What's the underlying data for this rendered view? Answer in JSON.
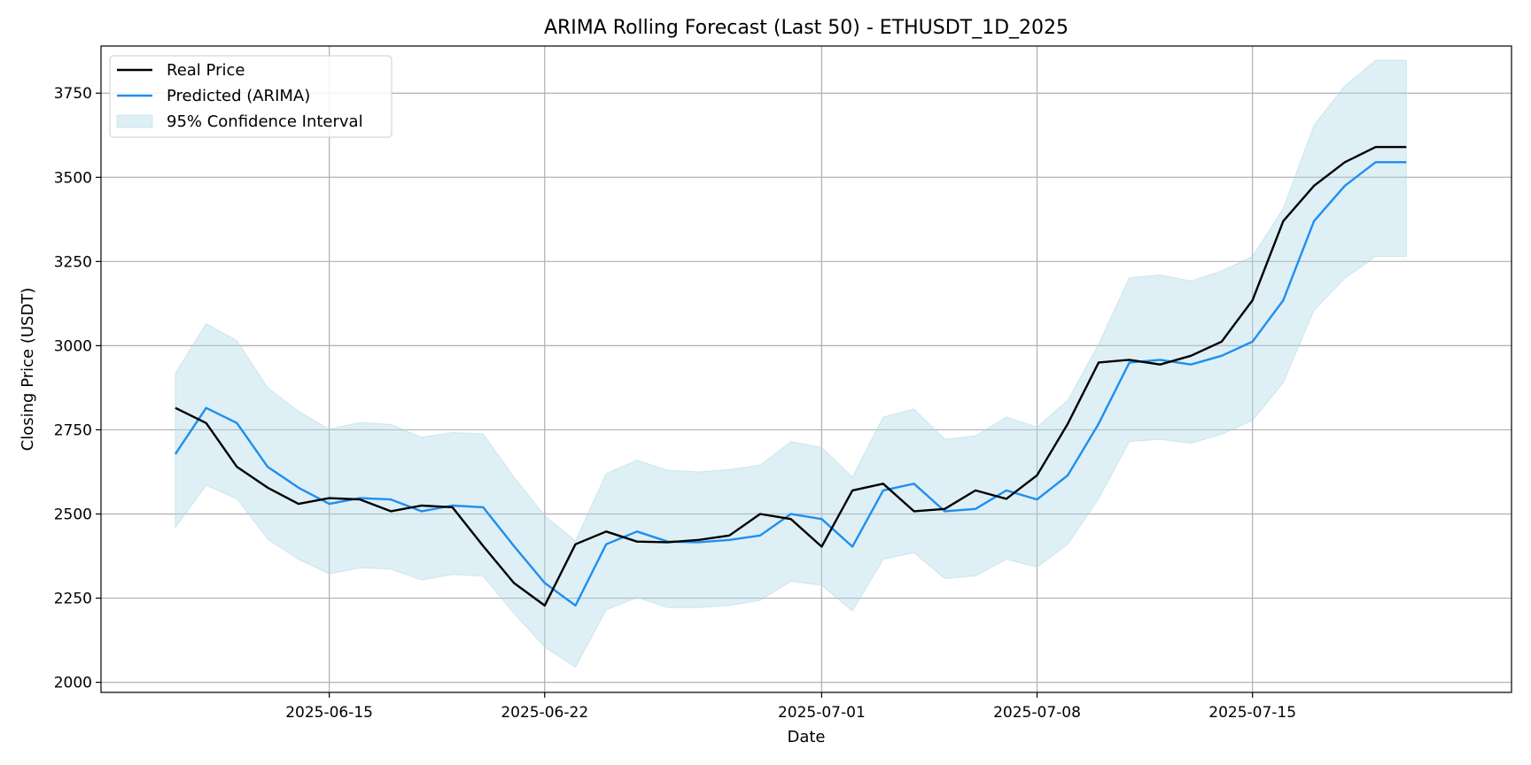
{
  "chart_data": {
    "type": "line",
    "title": "ARIMA Rolling Forecast (Last 50) - ETHUSDT_1D_2025",
    "xlabel": "Date",
    "ylabel": "Closing Price (USDT)",
    "ylim": [
      1970,
      3890
    ],
    "xlim": [
      "2025-06-07T14:00",
      "2025-07-23T10:00"
    ],
    "yticks": [
      2000,
      2250,
      2500,
      2750,
      3000,
      3250,
      3500,
      3750
    ],
    "xticks": [
      "2025-06-15",
      "2025-06-22",
      "2025-07-01",
      "2025-07-08",
      "2025-07-15"
    ],
    "grid": true,
    "legend_position": "upper-left",
    "dates": [
      "2025-06-10",
      "2025-06-11",
      "2025-06-12",
      "2025-06-13",
      "2025-06-14",
      "2025-06-15",
      "2025-06-16",
      "2025-06-17",
      "2025-06-18",
      "2025-06-19",
      "2025-06-20",
      "2025-06-21",
      "2025-06-22",
      "2025-06-23",
      "2025-06-24",
      "2025-06-25",
      "2025-06-26",
      "2025-06-27",
      "2025-06-28",
      "2025-06-29",
      "2025-06-30",
      "2025-07-01",
      "2025-07-02",
      "2025-07-03",
      "2025-07-04",
      "2025-07-05",
      "2025-07-06",
      "2025-07-07",
      "2025-07-08",
      "2025-07-09",
      "2025-07-10",
      "2025-07-11",
      "2025-07-12",
      "2025-07-13",
      "2025-07-14",
      "2025-07-15",
      "2025-07-16",
      "2025-07-17",
      "2025-07-18",
      "2025-07-19",
      "2025-07-20"
    ],
    "series": [
      {
        "name": "Real Price",
        "color": "#000000",
        "values": [
          2815,
          2770,
          2640,
          2578,
          2530,
          2547,
          2543,
          2508,
          2525,
          2520,
          2405,
          2295,
          2228,
          2410,
          2448,
          2418,
          2416,
          2423,
          2436,
          2500,
          2485,
          2403,
          2570,
          2590,
          2508,
          2515,
          2570,
          2545,
          2615,
          2768,
          2950,
          2958,
          2944,
          2970,
          3012,
          3135,
          3370,
          3475,
          3545,
          3590,
          3590
        ]
      },
      {
        "name": "Predicted (ARIMA)",
        "color": "#1e8ff0",
        "values": [
          2678,
          2815,
          2770,
          2640,
          2578,
          2530,
          2547,
          2543,
          2508,
          2525,
          2520,
          2405,
          2295,
          2228,
          2410,
          2448,
          2418,
          2416,
          2423,
          2436,
          2500,
          2485,
          2403,
          2570,
          2590,
          2508,
          2515,
          2570,
          2543,
          2615,
          2768,
          2950,
          2958,
          2944,
          2970,
          3012,
          3135,
          3370,
          3475,
          3545,
          3545
        ]
      }
    ],
    "confidence_interval": {
      "name": "95% Confidence Interval",
      "color": "#add8e6",
      "lower": [
        2460,
        2585,
        2545,
        2425,
        2365,
        2322,
        2340,
        2336,
        2304,
        2320,
        2315,
        2205,
        2105,
        2045,
        2215,
        2252,
        2222,
        2222,
        2228,
        2243,
        2300,
        2288,
        2212,
        2365,
        2385,
        2308,
        2316,
        2365,
        2342,
        2410,
        2545,
        2715,
        2722,
        2710,
        2737,
        2778,
        2890,
        3105,
        3200,
        3265,
        3265
      ],
      "upper": [
        2918,
        3065,
        3015,
        2875,
        2805,
        2752,
        2772,
        2766,
        2728,
        2742,
        2738,
        2610,
        2495,
        2420,
        2620,
        2660,
        2630,
        2625,
        2632,
        2645,
        2715,
        2698,
        2610,
        2788,
        2812,
        2722,
        2732,
        2788,
        2758,
        2838,
        3005,
        3202,
        3210,
        3192,
        3222,
        3265,
        3408,
        3655,
        3772,
        3848,
        3848
      ]
    }
  }
}
